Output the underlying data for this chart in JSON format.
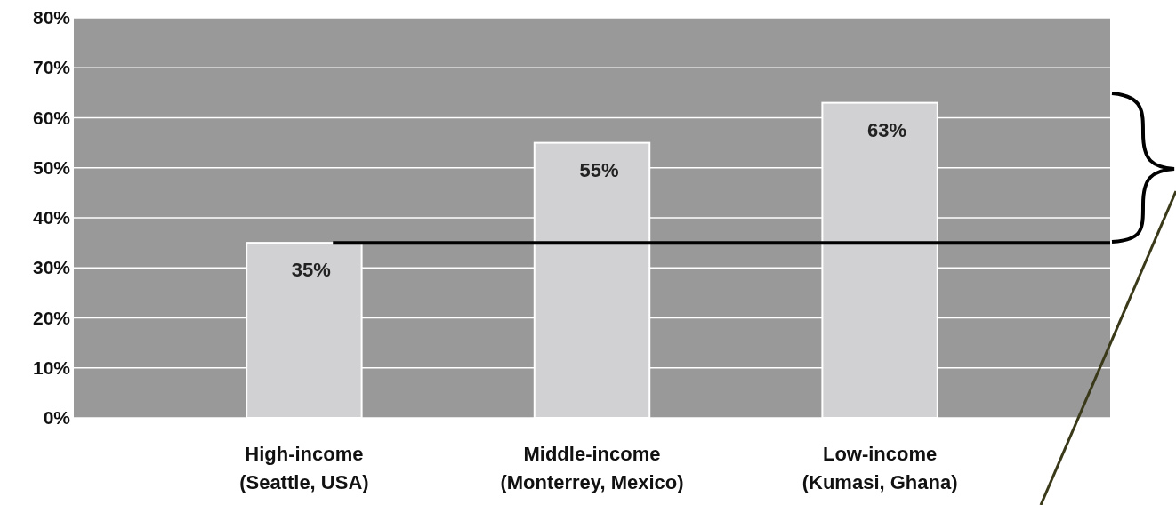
{
  "chart_data": {
    "type": "bar",
    "categories": [
      "High-income\n(Seattle, USA)",
      "Middle-income\n(Monterrey, Mexico)",
      "Low-income\n(Kumasi, Ghana)"
    ],
    "values": [
      35,
      55,
      63
    ],
    "value_labels": [
      "35%",
      "55%",
      "63%"
    ],
    "color": "#d1d1d3",
    "ylim": [
      0,
      80
    ],
    "yticks": [
      {
        "value": 0,
        "label": "0%"
      },
      {
        "value": 10,
        "label": "10%"
      },
      {
        "value": 20,
        "label": "20%"
      },
      {
        "value": 30,
        "label": "30%"
      },
      {
        "value": 40,
        "label": "40%"
      },
      {
        "value": 50,
        "label": "50%"
      },
      {
        "value": 60,
        "label": "60%"
      },
      {
        "value": 70,
        "label": "70%"
      },
      {
        "value": 80,
        "label": "80%"
      }
    ],
    "grid": "y",
    "ref_lines": [
      {
        "axis": "y",
        "value": 35,
        "color": "#000000"
      }
    ]
  }
}
